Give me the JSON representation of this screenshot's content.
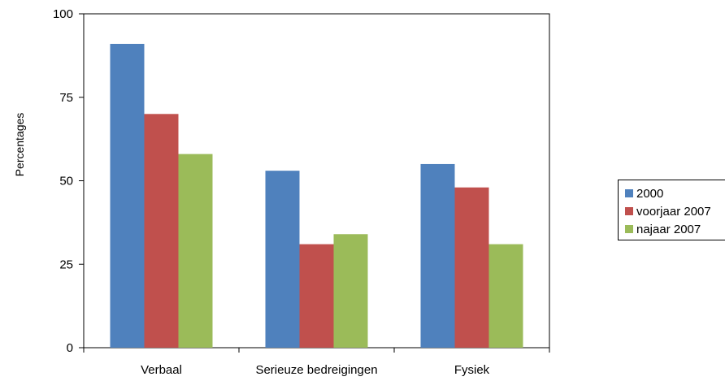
{
  "chart_data": {
    "type": "bar",
    "categories": [
      "Verbaal",
      "Serieuze bedreigingen",
      "Fysiek"
    ],
    "series": [
      {
        "name": "2000",
        "values": [
          91,
          53,
          55
        ],
        "color": "#4F81BD"
      },
      {
        "name": "voorjaar 2007",
        "values": [
          70,
          31,
          48
        ],
        "color": "#C0504D"
      },
      {
        "name": "najaar 2007",
        "values": [
          58,
          34,
          31
        ],
        "color": "#9BBB59"
      }
    ],
    "title": "",
    "xlabel": "",
    "ylabel": "Percentages",
    "ylim": [
      0,
      100
    ],
    "yticks": [
      "0",
      "25",
      "50",
      "75",
      "100"
    ],
    "grid": false,
    "legend_position": "right"
  }
}
